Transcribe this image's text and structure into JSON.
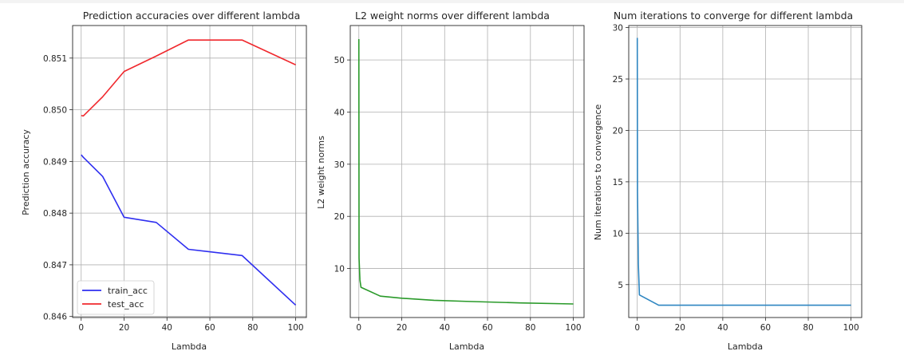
{
  "chart_data": [
    {
      "type": "line",
      "title": "Prediction accuracies over different lambda",
      "xlabel": "Lambda",
      "ylabel": "Prediction accuracy",
      "xlim": [
        -4,
        105
      ],
      "ylim": [
        0.84598,
        0.85163
      ],
      "xticks": [
        0,
        20,
        40,
        60,
        80,
        100
      ],
      "xtick_labels": [
        "0",
        "20",
        "40",
        "60",
        "80",
        "100"
      ],
      "yticks": [
        0.846,
        0.847,
        0.848,
        0.849,
        0.85,
        0.851
      ],
      "ytick_labels": [
        "0.846",
        "0.847",
        "0.848",
        "0.849",
        "0.850",
        "0.851"
      ],
      "grid": true,
      "legend": "lower-left",
      "series": [
        {
          "name": "train_acc",
          "color": "#2f2ff0",
          "x": [
            0,
            1,
            10,
            20,
            35,
            50,
            75,
            100
          ],
          "y": [
            0.84913,
            0.84908,
            0.84871,
            0.84792,
            0.84782,
            0.8473,
            0.84718,
            0.84622
          ]
        },
        {
          "name": "test_acc",
          "color": "#f0282d",
          "x": [
            0,
            1,
            10,
            20,
            35,
            50,
            75,
            100
          ],
          "y": [
            0.84989,
            0.84988,
            0.85025,
            0.85074,
            0.85104,
            0.85135,
            0.85135,
            0.85087
          ]
        }
      ]
    },
    {
      "type": "line",
      "title": "L2 weight norms over different lambda",
      "xlabel": "Lambda",
      "ylabel": "L2 weight norms",
      "xlim": [
        -4,
        105
      ],
      "ylim": [
        0.6,
        56.6
      ],
      "xticks": [
        0,
        20,
        40,
        60,
        80,
        100
      ],
      "xtick_labels": [
        "0",
        "20",
        "40",
        "60",
        "80",
        "100"
      ],
      "yticks": [
        10,
        20,
        30,
        40,
        50
      ],
      "ytick_labels": [
        "10",
        "20",
        "30",
        "40",
        "50"
      ],
      "grid": true,
      "series": [
        {
          "color": "#2a9a2a",
          "x": [
            0,
            0.1,
            0.5,
            1,
            10,
            20,
            35,
            50,
            75,
            100
          ],
          "y": [
            54,
            12,
            7.8,
            6.4,
            4.7,
            4.3,
            3.9,
            3.7,
            3.4,
            3.2
          ]
        }
      ]
    },
    {
      "type": "line",
      "title": "Num iterations to converge for different lambda",
      "xlabel": "Lambda",
      "ylabel": "Num iterations to convergence",
      "xlim": [
        -4,
        105
      ],
      "ylim": [
        1.8,
        30.2
      ],
      "xticks": [
        0,
        20,
        40,
        60,
        80,
        100
      ],
      "xtick_labels": [
        "0",
        "20",
        "40",
        "60",
        "80",
        "100"
      ],
      "yticks": [
        5,
        10,
        15,
        20,
        25,
        30
      ],
      "ytick_labels": [
        "5",
        "10",
        "15",
        "20",
        "25",
        "30"
      ],
      "grid": true,
      "series": [
        {
          "color": "#2e86c1",
          "x": [
            0,
            0.1,
            0.5,
            1,
            10,
            20,
            35,
            50,
            75,
            100
          ],
          "y": [
            29,
            14,
            7,
            4,
            3,
            3,
            3,
            3,
            3,
            3
          ]
        }
      ]
    }
  ]
}
